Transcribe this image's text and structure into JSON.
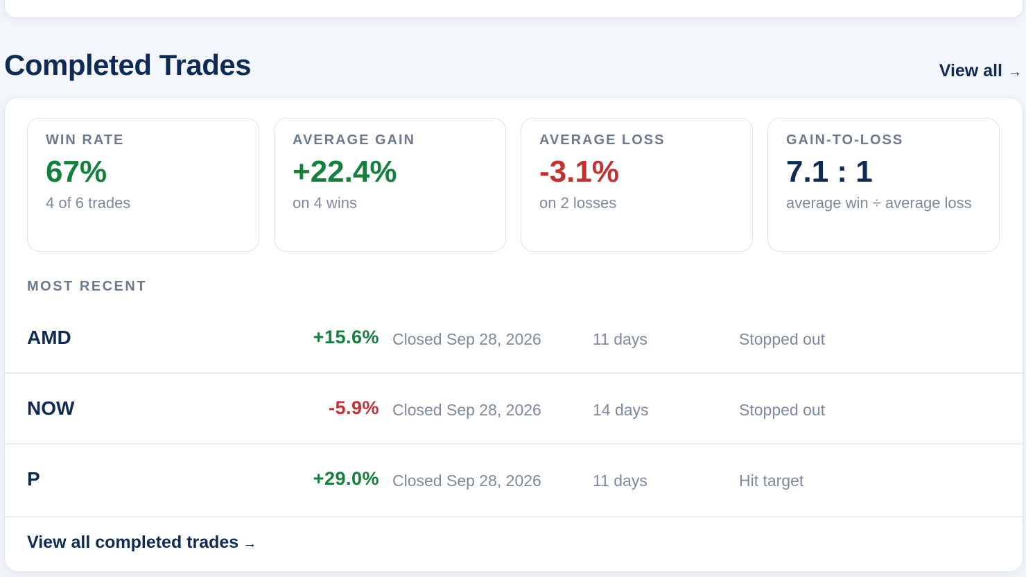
{
  "section": {
    "title": "Completed Trades",
    "view_all_label": "View all",
    "arrow": "→"
  },
  "stats": [
    {
      "label": "WIN RATE",
      "value": "67%",
      "sub": "4 of 6 trades",
      "tone": "green"
    },
    {
      "label": "AVERAGE GAIN",
      "value": "+22.4%",
      "sub": "on 4 wins",
      "tone": "green"
    },
    {
      "label": "AVERAGE LOSS",
      "value": "-3.1%",
      "sub": "on 2 losses",
      "tone": "red"
    },
    {
      "label": "GAIN-TO-LOSS",
      "value": "7.1 : 1",
      "sub": "average win ÷ average loss",
      "tone": "navy"
    }
  ],
  "recent": {
    "label": "MOST RECENT",
    "trades": [
      {
        "ticker": "AMD",
        "change": "+15.6%",
        "tone": "green",
        "closed": "Closed Sep 28, 2026",
        "duration": "11 days",
        "outcome": "Stopped out"
      },
      {
        "ticker": "NOW",
        "change": "-5.9%",
        "tone": "red",
        "closed": "Closed Sep 28, 2026",
        "duration": "14 days",
        "outcome": "Stopped out"
      },
      {
        "ticker": "P",
        "change": "+29.0%",
        "tone": "green",
        "closed": "Closed Sep 28, 2026",
        "duration": "11 days",
        "outcome": "Hit target"
      }
    ]
  },
  "footer": {
    "link_label": "View all completed trades",
    "arrow": "→"
  },
  "colors": {
    "positive": "#13803d",
    "negative": "#c53030",
    "primary": "#0f2a55",
    "muted": "#7d899a"
  }
}
